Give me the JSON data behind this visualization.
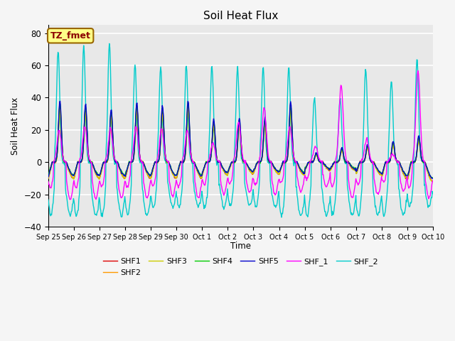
{
  "title": "Soil Heat Flux",
  "ylabel": "Soil Heat Flux",
  "xlabel": "Time",
  "annotation_text": "TZ_fmet",
  "ylim": [
    -40,
    85
  ],
  "yticks": [
    -40,
    -20,
    0,
    20,
    40,
    60,
    80
  ],
  "xtick_labels": [
    "Sep 25",
    "Sep 26",
    "Sep 27",
    "Sep 28",
    "Sep 29",
    "Sep 30",
    "Oct 1",
    "Oct 2",
    "Oct 3",
    "Oct 4",
    "Oct 5",
    "Oct 6",
    "Oct 7",
    "Oct 8",
    "Oct 9",
    "Oct 10"
  ],
  "series_colors": {
    "SHF1": "#dd0000",
    "SHF2": "#ff9900",
    "SHF3": "#cccc00",
    "SHF4": "#00cc00",
    "SHF5": "#0000cc",
    "SHF_1": "#ff00ff",
    "SHF_2": "#00cccc"
  },
  "background_color": "#e8e8e8",
  "title_fontsize": 11
}
